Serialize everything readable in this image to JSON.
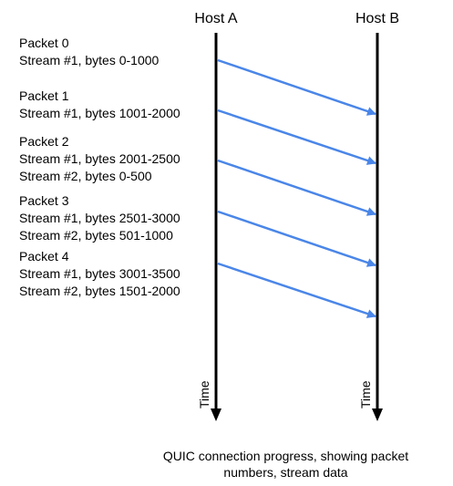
{
  "hosts": {
    "a": "Host A",
    "b": "Host B"
  },
  "time_label": "Time",
  "packets": [
    {
      "label": "Packet 0",
      "streams": [
        "Stream #1, bytes 0-1000"
      ]
    },
    {
      "label": "Packet 1",
      "streams": [
        "Stream #1, bytes 1001-2000"
      ]
    },
    {
      "label": "Packet 2",
      "streams": [
        "Stream #1, bytes 2001-2500",
        "Stream #2, bytes 0-500"
      ]
    },
    {
      "label": "Packet 3",
      "streams": [
        "Stream #1, bytes 2501-3000",
        "Stream #2, bytes 501-1000"
      ]
    },
    {
      "label": "Packet 4",
      "streams": [
        "Stream #1, bytes 3001-3500",
        "Stream #2, bytes 1501-2000"
      ]
    }
  ],
  "caption": {
    "line1": "QUIC connection progress, showing packet",
    "line2": "numbers, stream data"
  },
  "colors": {
    "arrow": "#4a86e8",
    "timeline": "#000000"
  }
}
